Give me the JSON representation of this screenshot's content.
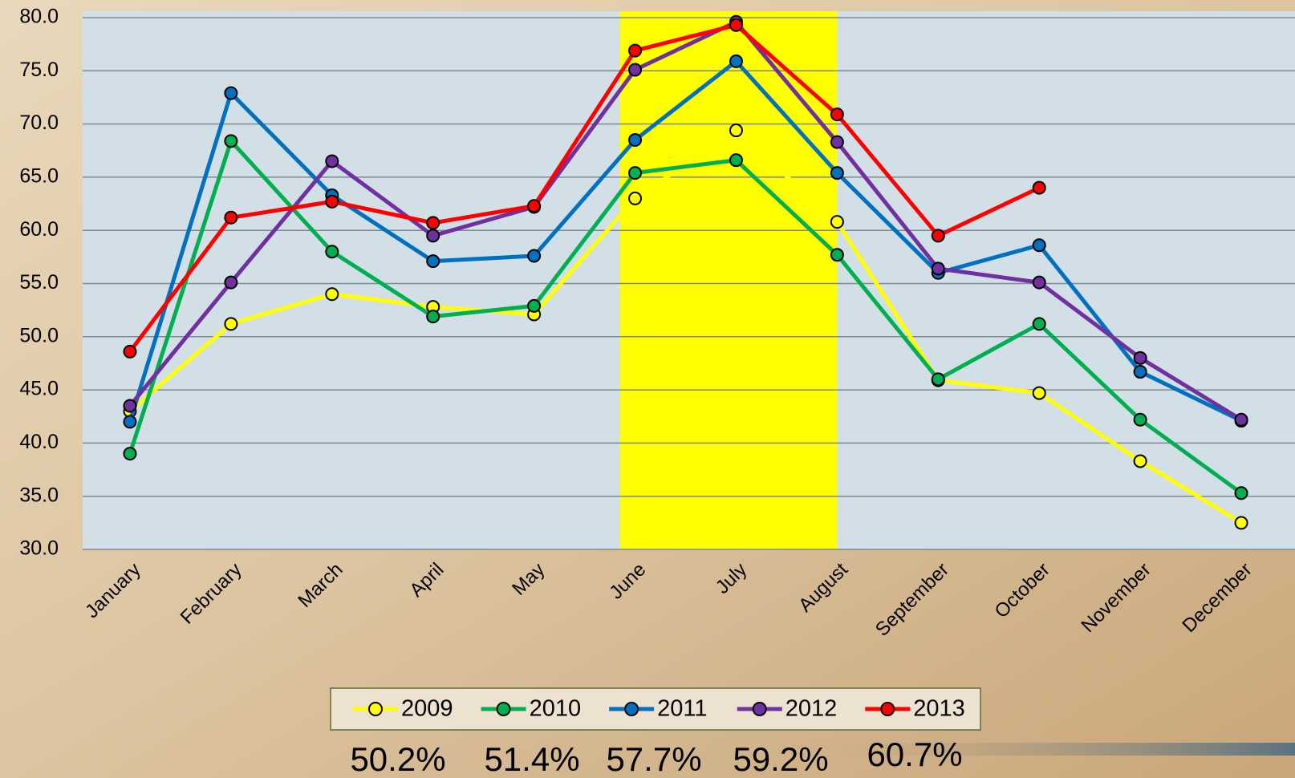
{
  "chart_data": {
    "type": "line",
    "categories": [
      "January",
      "February",
      "March",
      "April",
      "May",
      "June",
      "July",
      "August",
      "September",
      "October",
      "November",
      "December"
    ],
    "series": [
      {
        "name": "2009",
        "color": "#ffff00",
        "values": [
          43.0,
          51.2,
          54.0,
          52.8,
          52.1,
          63.0,
          69.4,
          60.8,
          45.9,
          44.7,
          38.3,
          32.5
        ]
      },
      {
        "name": "2010",
        "color": "#00b050",
        "values": [
          39.0,
          68.4,
          58.0,
          51.9,
          52.9,
          65.4,
          66.6,
          57.7,
          46.0,
          51.2,
          42.2,
          35.3
        ]
      },
      {
        "name": "2011",
        "color": "#0070c0",
        "values": [
          42.0,
          72.9,
          63.3,
          57.1,
          57.6,
          68.5,
          75.9,
          65.4,
          56.0,
          58.6,
          46.7,
          42.1
        ]
      },
      {
        "name": "2012",
        "color": "#7030a0",
        "values": [
          43.5,
          55.1,
          66.5,
          59.5,
          62.2,
          75.1,
          79.6,
          68.3,
          56.4,
          55.1,
          48.0,
          42.2
        ]
      },
      {
        "name": "2013",
        "color": "#ff0000",
        "values": [
          48.6,
          61.2,
          62.7,
          60.7,
          62.3,
          76.9,
          79.3,
          70.9,
          59.5,
          64.0,
          null,
          null
        ]
      }
    ],
    "ylim": [
      30,
      80
    ],
    "yticks": [
      {
        "value": 30,
        "label": "30.0"
      },
      {
        "value": 35,
        "label": "35.0"
      },
      {
        "value": 40,
        "label": "40.0"
      },
      {
        "value": 45,
        "label": "45.0"
      },
      {
        "value": 50,
        "label": "50.0"
      },
      {
        "value": 55,
        "label": "55.0"
      },
      {
        "value": 60,
        "label": "60.0"
      },
      {
        "value": 65,
        "label": "65.0"
      },
      {
        "value": 70,
        "label": "70.0"
      },
      {
        "value": 75,
        "label": "75.0"
      },
      {
        "value": 80,
        "label": "80.0"
      }
    ],
    "grid": true,
    "highlight": {
      "start": 5,
      "end": 7,
      "color": "#ffff00"
    },
    "legend": "bottom",
    "annotations": [
      "50.2%",
      "51.4%",
      "57.7%",
      "59.2%",
      "60.7%"
    ]
  }
}
